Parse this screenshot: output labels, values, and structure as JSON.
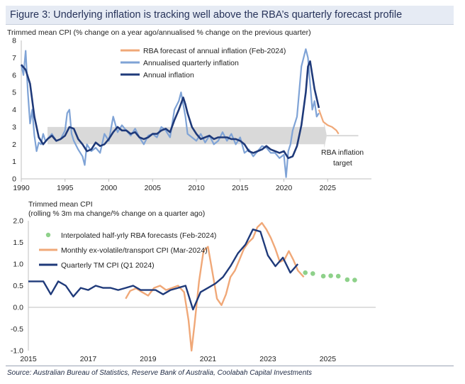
{
  "title": "Figure 3: Underlying inflation is tracking well above the RBA’s quarterly forecast profile",
  "source": "Source: Australian Bureau of Statistics, Reserve Bank of Australia, Coolabah Capital Investments",
  "colors": {
    "annual": "#1f3a7a",
    "quarterly": "#7fa3d6",
    "forecast": "#f0a878",
    "target_band": "#d9d9d9",
    "monthly": "#f0a878",
    "rba_dots": "#8ed18a",
    "tm_quarterly": "#1f3a7a"
  },
  "chart_data": [
    {
      "type": "line",
      "subtitle": "Trimmed mean CPI (% change on a year ago/annualised % change on the previous quarter)",
      "xlim": [
        1990,
        2030
      ],
      "ylim": [
        0,
        8
      ],
      "xticks": [
        1990,
        1995,
        2000,
        2005,
        2010,
        2015,
        2020,
        2025
      ],
      "xtick_labels": [
        "1990",
        "1995",
        "2000",
        "2005",
        "2010",
        "2015",
        "2020",
        "2025"
      ],
      "yticks": [
        0,
        1,
        2,
        3,
        4,
        5,
        6,
        7,
        8
      ],
      "ytick_labels": [
        "0",
        "1",
        "2",
        "3",
        "4",
        "5",
        "6",
        "7",
        "8"
      ],
      "legend": "top-center",
      "target_band": {
        "label_line1": "RBA inflation",
        "label_line2": "target",
        "y_range": [
          2,
          3
        ],
        "x_start": 1993
      },
      "series": [
        {
          "name": "RBA forecast of annual inflation (Feb-2024)",
          "x": [
            2024.0,
            2024.5,
            2025.0,
            2025.5,
            2026.0,
            2026.25
          ],
          "values": [
            4.0,
            3.3,
            3.1,
            3.0,
            2.8,
            2.6
          ]
        },
        {
          "name": "Annualised quarterly inflation",
          "x": [
            1990.0,
            1990.25,
            1990.5,
            1990.75,
            1991.0,
            1991.25,
            1991.5,
            1991.75,
            1992.0,
            1992.25,
            1992.5,
            1992.75,
            1993.0,
            1993.5,
            1994.0,
            1994.5,
            1995.0,
            1995.25,
            1995.5,
            1995.75,
            1996.0,
            1996.5,
            1997.0,
            1997.25,
            1997.5,
            1998.0,
            1998.5,
            1999.0,
            1999.5,
            2000.0,
            2000.5,
            2001.0,
            2001.5,
            2002.0,
            2002.5,
            2003.0,
            2003.5,
            2004.0,
            2004.5,
            2005.0,
            2005.5,
            2006.0,
            2006.5,
            2007.0,
            2007.5,
            2008.0,
            2008.25,
            2008.5,
            2008.75,
            2009.0,
            2009.5,
            2010.0,
            2010.5,
            2011.0,
            2011.5,
            2012.0,
            2012.5,
            2013.0,
            2013.5,
            2014.0,
            2014.5,
            2015.0,
            2015.5,
            2016.0,
            2016.5,
            2017.0,
            2017.5,
            2018.0,
            2018.5,
            2019.0,
            2019.5,
            2020.0,
            2020.25,
            2020.5,
            2020.75,
            2021.0,
            2021.5,
            2022.0,
            2022.25,
            2022.5,
            2022.75,
            2023.0,
            2023.25,
            2023.5,
            2023.75,
            2024.0
          ],
          "values": [
            6.6,
            6.0,
            7.4,
            5.0,
            3.2,
            4.0,
            2.5,
            1.6,
            2.1,
            2.0,
            2.6,
            2.2,
            2.3,
            2.6,
            2.2,
            2.3,
            2.8,
            3.8,
            4.0,
            2.6,
            2.2,
            1.7,
            1.3,
            0.8,
            2.0,
            1.6,
            1.8,
            1.5,
            2.6,
            2.2,
            3.6,
            2.7,
            3.1,
            2.8,
            2.5,
            2.9,
            2.4,
            2.0,
            2.5,
            2.6,
            2.4,
            3.0,
            2.8,
            2.4,
            4.0,
            4.5,
            5.0,
            4.3,
            3.6,
            2.6,
            2.4,
            2.2,
            2.6,
            2.1,
            2.5,
            2.0,
            2.2,
            2.7,
            2.2,
            2.6,
            2.0,
            2.4,
            1.5,
            1.7,
            1.3,
            1.6,
            1.9,
            1.8,
            1.5,
            1.5,
            1.2,
            1.4,
            0.1,
            1.6,
            2.0,
            2.8,
            3.6,
            6.5,
            7.0,
            7.5,
            7.0,
            5.5,
            4.0,
            4.5,
            3.6,
            3.8
          ]
        },
        {
          "name": "Annual inflation",
          "x": [
            1990.0,
            1990.5,
            1991.0,
            1991.5,
            1992.0,
            1992.5,
            1993.0,
            1993.5,
            1994.0,
            1994.5,
            1995.0,
            1995.5,
            1996.0,
            1996.5,
            1997.0,
            1997.5,
            1998.0,
            1998.5,
            1999.0,
            1999.5,
            2000.0,
            2000.5,
            2001.0,
            2001.5,
            2002.0,
            2002.5,
            2003.0,
            2003.5,
            2004.0,
            2004.5,
            2005.0,
            2005.5,
            2006.0,
            2006.5,
            2007.0,
            2007.5,
            2008.0,
            2008.5,
            2008.75,
            2009.0,
            2009.5,
            2010.0,
            2010.5,
            2011.0,
            2011.5,
            2012.0,
            2012.5,
            2013.0,
            2013.5,
            2014.0,
            2014.5,
            2015.0,
            2015.5,
            2016.0,
            2016.5,
            2017.0,
            2017.5,
            2018.0,
            2018.5,
            2019.0,
            2019.5,
            2020.0,
            2020.5,
            2021.0,
            2021.5,
            2022.0,
            2022.5,
            2022.75,
            2023.0,
            2023.5,
            2024.0
          ],
          "values": [
            6.6,
            6.3,
            5.5,
            3.6,
            2.4,
            2.0,
            2.3,
            2.5,
            2.2,
            2.3,
            2.5,
            3.0,
            2.9,
            2.3,
            2.0,
            1.6,
            1.7,
            2.1,
            1.9,
            2.0,
            2.3,
            2.7,
            3.0,
            2.8,
            2.8,
            2.6,
            2.7,
            2.4,
            2.3,
            2.4,
            2.6,
            2.6,
            2.8,
            2.9,
            2.7,
            3.4,
            4.0,
            4.7,
            4.3,
            3.8,
            3.0,
            2.6,
            2.3,
            2.4,
            2.5,
            2.3,
            2.4,
            2.4,
            2.4,
            2.3,
            2.3,
            2.2,
            2.0,
            1.6,
            1.5,
            1.6,
            1.7,
            1.9,
            1.7,
            1.6,
            1.5,
            1.6,
            1.2,
            1.3,
            1.9,
            3.1,
            5.0,
            6.5,
            6.8,
            5.2,
            4.1
          ]
        }
      ]
    },
    {
      "type": "line",
      "subtitle": "Trimmed mean CPI",
      "subtitle2": "(rolling % 3m ma change/% change on a quarter ago)",
      "xlim": [
        2015,
        2026.6
      ],
      "ylim": [
        -1.0,
        2.0
      ],
      "xticks": [
        2015,
        2017,
        2019,
        2021,
        2023,
        2025
      ],
      "xtick_labels": [
        "2015",
        "2017",
        "2019",
        "2021",
        "2023",
        "2025"
      ],
      "yticks": [
        -1.0,
        -0.5,
        0.0,
        0.5,
        1.0,
        1.5,
        2.0
      ],
      "ytick_labels": [
        "-1.0",
        "-0.5",
        "0.0",
        "0.5",
        "1.0",
        "1.5",
        "2.0"
      ],
      "legend": "top-left",
      "series": [
        {
          "name": "Interpolated half-yrly RBA forecasts (Feb-2024)",
          "style": "dots",
          "x": [
            2024.25,
            2024.5,
            2024.85,
            2025.1,
            2025.35,
            2025.65,
            2025.9
          ],
          "values": [
            0.8,
            0.78,
            0.72,
            0.73,
            0.72,
            0.64,
            0.63
          ]
        },
        {
          "name": "Monthly ex-volatile/transport CPI (Mar-2024)",
          "x": [
            2018.25,
            2018.4,
            2018.6,
            2018.8,
            2019.0,
            2019.2,
            2019.4,
            2019.6,
            2019.8,
            2020.0,
            2020.2,
            2020.35,
            2020.45,
            2020.55,
            2020.7,
            2020.85,
            2021.0,
            2021.15,
            2021.3,
            2021.45,
            2021.6,
            2021.75,
            2021.9,
            2022.05,
            2022.2,
            2022.35,
            2022.5,
            2022.65,
            2022.8,
            2022.95,
            2023.1,
            2023.25,
            2023.4,
            2023.55,
            2023.7,
            2023.85,
            2024.0,
            2024.2
          ],
          "values": [
            0.2,
            0.38,
            0.44,
            0.35,
            0.27,
            0.45,
            0.5,
            0.4,
            0.45,
            0.5,
            0.35,
            -0.3,
            -1.0,
            -0.4,
            0.6,
            1.3,
            1.4,
            0.8,
            0.2,
            0.05,
            0.3,
            0.7,
            0.85,
            1.1,
            1.35,
            1.5,
            1.6,
            1.85,
            1.95,
            1.8,
            1.6,
            1.35,
            1.05,
            1.1,
            1.3,
            1.1,
            0.85,
            0.7
          ]
        },
        {
          "name": "Quarterly TM CPI (Q1 2024)",
          "x": [
            2015.0,
            2015.25,
            2015.5,
            2015.75,
            2016.0,
            2016.25,
            2016.5,
            2016.75,
            2017.0,
            2017.25,
            2017.5,
            2017.75,
            2018.0,
            2018.25,
            2018.5,
            2018.75,
            2019.0,
            2019.25,
            2019.5,
            2019.75,
            2020.0,
            2020.25,
            2020.5,
            2020.75,
            2021.0,
            2021.25,
            2021.5,
            2021.75,
            2022.0,
            2022.25,
            2022.5,
            2022.75,
            2023.0,
            2023.25,
            2023.5,
            2023.75,
            2024.0
          ],
          "values": [
            0.6,
            0.6,
            0.6,
            0.3,
            0.6,
            0.5,
            0.25,
            0.45,
            0.4,
            0.5,
            0.45,
            0.45,
            0.4,
            0.45,
            0.5,
            0.4,
            0.4,
            0.4,
            0.3,
            0.4,
            0.45,
            0.5,
            -0.05,
            0.35,
            0.45,
            0.55,
            0.7,
            0.95,
            1.25,
            1.45,
            1.8,
            1.75,
            1.2,
            0.95,
            1.15,
            0.8,
            1.0
          ]
        }
      ]
    }
  ]
}
